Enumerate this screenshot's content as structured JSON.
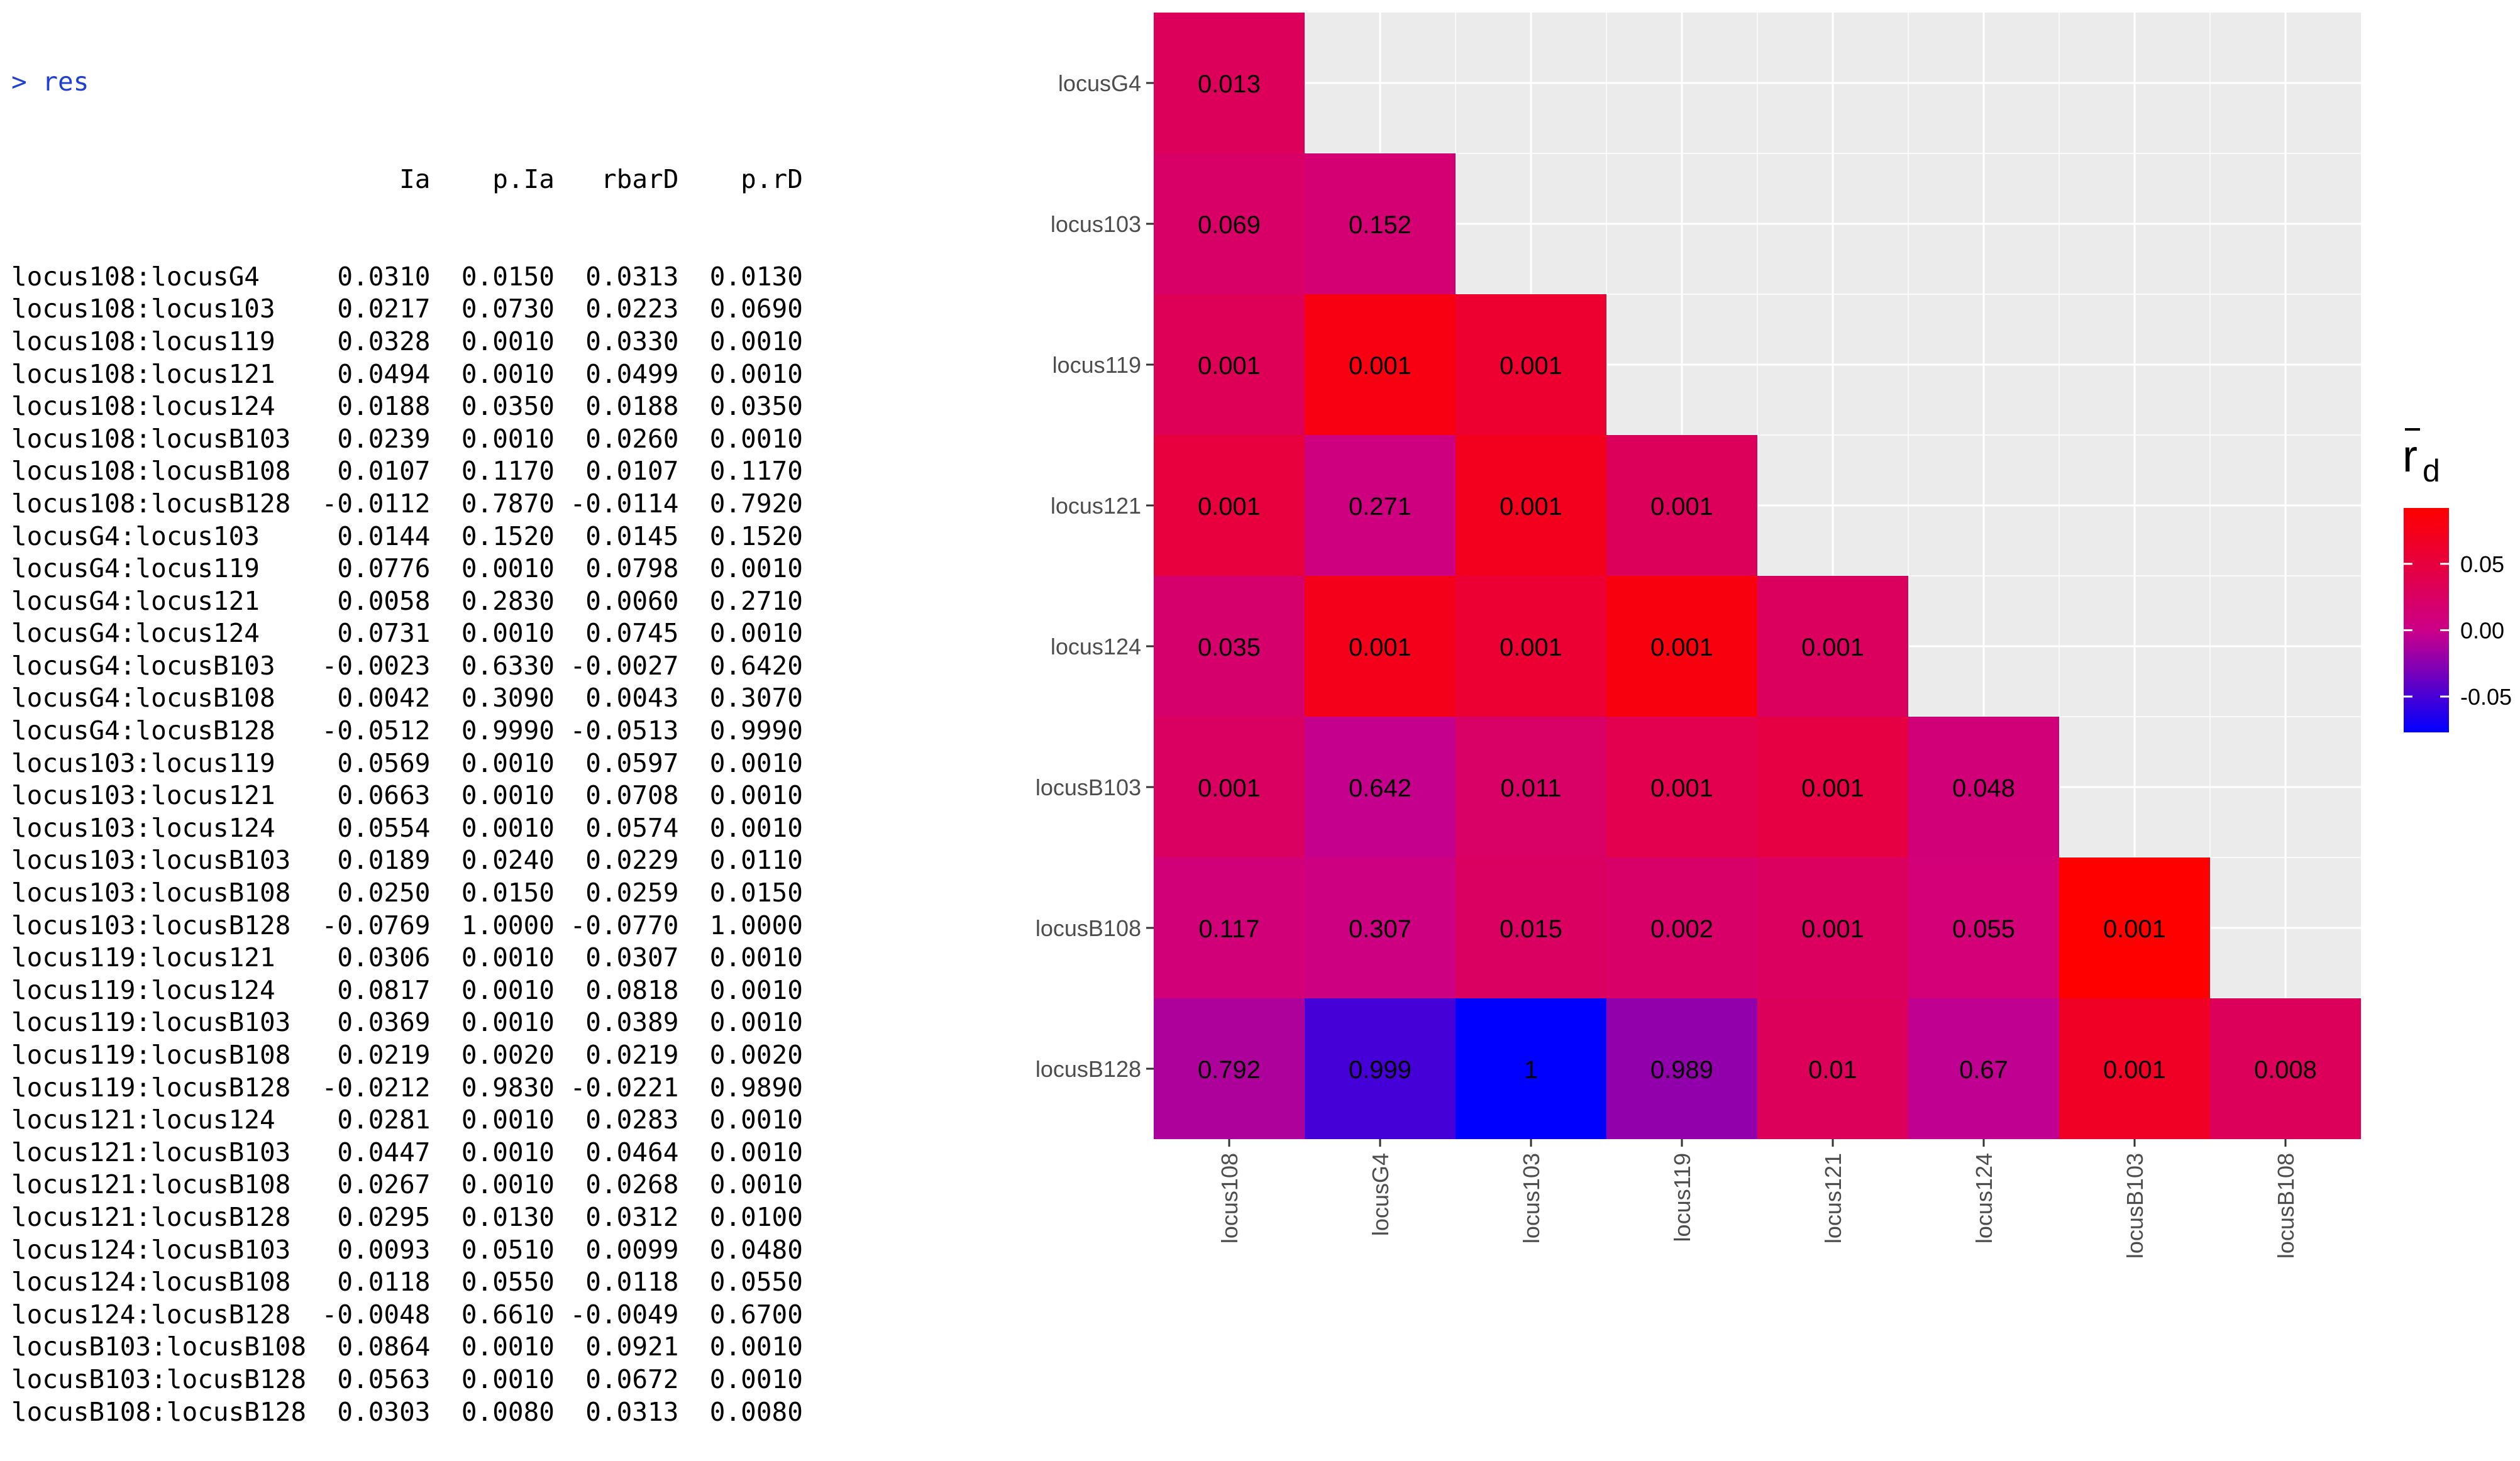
{
  "console": {
    "prompt": "> res",
    "headers": [
      "",
      "Ia",
      "p.Ia",
      "rbarD",
      "p.rD"
    ],
    "rows": [
      [
        "locus108:locusG4",
        "0.0310",
        "0.0150",
        "0.0313",
        "0.0130"
      ],
      [
        "locus108:locus103",
        "0.0217",
        "0.0730",
        "0.0223",
        "0.0690"
      ],
      [
        "locus108:locus119",
        "0.0328",
        "0.0010",
        "0.0330",
        "0.0010"
      ],
      [
        "locus108:locus121",
        "0.0494",
        "0.0010",
        "0.0499",
        "0.0010"
      ],
      [
        "locus108:locus124",
        "0.0188",
        "0.0350",
        "0.0188",
        "0.0350"
      ],
      [
        "locus108:locusB103",
        "0.0239",
        "0.0010",
        "0.0260",
        "0.0010"
      ],
      [
        "locus108:locusB108",
        "0.0107",
        "0.1170",
        "0.0107",
        "0.1170"
      ],
      [
        "locus108:locusB128",
        "-0.0112",
        "0.7870",
        "-0.0114",
        "0.7920"
      ],
      [
        "locusG4:locus103",
        "0.0144",
        "0.1520",
        "0.0145",
        "0.1520"
      ],
      [
        "locusG4:locus119",
        "0.0776",
        "0.0010",
        "0.0798",
        "0.0010"
      ],
      [
        "locusG4:locus121",
        "0.0058",
        "0.2830",
        "0.0060",
        "0.2710"
      ],
      [
        "locusG4:locus124",
        "0.0731",
        "0.0010",
        "0.0745",
        "0.0010"
      ],
      [
        "locusG4:locusB103",
        "-0.0023",
        "0.6330",
        "-0.0027",
        "0.6420"
      ],
      [
        "locusG4:locusB108",
        "0.0042",
        "0.3090",
        "0.0043",
        "0.3070"
      ],
      [
        "locusG4:locusB128",
        "-0.0512",
        "0.9990",
        "-0.0513",
        "0.9990"
      ],
      [
        "locus103:locus119",
        "0.0569",
        "0.0010",
        "0.0597",
        "0.0010"
      ],
      [
        "locus103:locus121",
        "0.0663",
        "0.0010",
        "0.0708",
        "0.0010"
      ],
      [
        "locus103:locus124",
        "0.0554",
        "0.0010",
        "0.0574",
        "0.0010"
      ],
      [
        "locus103:locusB103",
        "0.0189",
        "0.0240",
        "0.0229",
        "0.0110"
      ],
      [
        "locus103:locusB108",
        "0.0250",
        "0.0150",
        "0.0259",
        "0.0150"
      ],
      [
        "locus103:locusB128",
        "-0.0769",
        "1.0000",
        "-0.0770",
        "1.0000"
      ],
      [
        "locus119:locus121",
        "0.0306",
        "0.0010",
        "0.0307",
        "0.0010"
      ],
      [
        "locus119:locus124",
        "0.0817",
        "0.0010",
        "0.0818",
        "0.0010"
      ],
      [
        "locus119:locusB103",
        "0.0369",
        "0.0010",
        "0.0389",
        "0.0010"
      ],
      [
        "locus119:locusB108",
        "0.0219",
        "0.0020",
        "0.0219",
        "0.0020"
      ],
      [
        "locus119:locusB128",
        "-0.0212",
        "0.9830",
        "-0.0221",
        "0.9890"
      ],
      [
        "locus121:locus124",
        "0.0281",
        "0.0010",
        "0.0283",
        "0.0010"
      ],
      [
        "locus121:locusB103",
        "0.0447",
        "0.0010",
        "0.0464",
        "0.0010"
      ],
      [
        "locus121:locusB108",
        "0.0267",
        "0.0010",
        "0.0268",
        "0.0010"
      ],
      [
        "locus121:locusB128",
        "0.0295",
        "0.0130",
        "0.0312",
        "0.0100"
      ],
      [
        "locus124:locusB103",
        "0.0093",
        "0.0510",
        "0.0099",
        "0.0480"
      ],
      [
        "locus124:locusB108",
        "0.0118",
        "0.0550",
        "0.0118",
        "0.0550"
      ],
      [
        "locus124:locusB128",
        "-0.0048",
        "0.6610",
        "-0.0049",
        "0.6700"
      ],
      [
        "locusB103:locusB108",
        "0.0864",
        "0.0010",
        "0.0921",
        "0.0010"
      ],
      [
        "locusB103:locusB128",
        "0.0563",
        "0.0010",
        "0.0672",
        "0.0010"
      ],
      [
        "locusB108:locusB128",
        "0.0303",
        "0.0080",
        "0.0313",
        "0.0080"
      ]
    ]
  },
  "chart_data": {
    "type": "heatmap",
    "x_categories": [
      "locus108",
      "locusG4",
      "locus103",
      "locus119",
      "locus121",
      "locus124",
      "locusB103",
      "locusB108"
    ],
    "y_categories": [
      "locusG4",
      "locus103",
      "locus119",
      "locus121",
      "locus124",
      "locusB103",
      "locusB108",
      "locusB128"
    ],
    "cells": [
      {
        "x": "locus108",
        "y": "locusG4",
        "fill": 0.0313,
        "label": "0.013"
      },
      {
        "x": "locus108",
        "y": "locus103",
        "fill": 0.0223,
        "label": "0.069"
      },
      {
        "x": "locusG4",
        "y": "locus103",
        "fill": 0.0145,
        "label": "0.152"
      },
      {
        "x": "locus108",
        "y": "locus119",
        "fill": 0.033,
        "label": "0.001"
      },
      {
        "x": "locusG4",
        "y": "locus119",
        "fill": 0.0798,
        "label": "0.001"
      },
      {
        "x": "locus103",
        "y": "locus119",
        "fill": 0.0597,
        "label": "0.001"
      },
      {
        "x": "locus108",
        "y": "locus121",
        "fill": 0.0499,
        "label": "0.001"
      },
      {
        "x": "locusG4",
        "y": "locus121",
        "fill": 0.006,
        "label": "0.271"
      },
      {
        "x": "locus103",
        "y": "locus121",
        "fill": 0.0708,
        "label": "0.001"
      },
      {
        "x": "locus119",
        "y": "locus121",
        "fill": 0.0307,
        "label": "0.001"
      },
      {
        "x": "locus108",
        "y": "locus124",
        "fill": 0.0188,
        "label": "0.035"
      },
      {
        "x": "locusG4",
        "y": "locus124",
        "fill": 0.0745,
        "label": "0.001"
      },
      {
        "x": "locus103",
        "y": "locus124",
        "fill": 0.0574,
        "label": "0.001"
      },
      {
        "x": "locus119",
        "y": "locus124",
        "fill": 0.0818,
        "label": "0.001"
      },
      {
        "x": "locus121",
        "y": "locus124",
        "fill": 0.0283,
        "label": "0.001"
      },
      {
        "x": "locus108",
        "y": "locusB103",
        "fill": 0.026,
        "label": "0.001"
      },
      {
        "x": "locusG4",
        "y": "locusB103",
        "fill": -0.0027,
        "label": "0.642"
      },
      {
        "x": "locus103",
        "y": "locusB103",
        "fill": 0.0229,
        "label": "0.011"
      },
      {
        "x": "locus119",
        "y": "locusB103",
        "fill": 0.0389,
        "label": "0.001"
      },
      {
        "x": "locus121",
        "y": "locusB103",
        "fill": 0.0464,
        "label": "0.001"
      },
      {
        "x": "locus124",
        "y": "locusB103",
        "fill": 0.0099,
        "label": "0.048"
      },
      {
        "x": "locus108",
        "y": "locusB108",
        "fill": 0.0107,
        "label": "0.117"
      },
      {
        "x": "locusG4",
        "y": "locusB108",
        "fill": 0.0043,
        "label": "0.307"
      },
      {
        "x": "locus103",
        "y": "locusB108",
        "fill": 0.0259,
        "label": "0.015"
      },
      {
        "x": "locus119",
        "y": "locusB108",
        "fill": 0.0219,
        "label": "0.002"
      },
      {
        "x": "locus121",
        "y": "locusB108",
        "fill": 0.0268,
        "label": "0.001"
      },
      {
        "x": "locus124",
        "y": "locusB108",
        "fill": 0.0118,
        "label": "0.055"
      },
      {
        "x": "locusB103",
        "y": "locusB108",
        "fill": 0.0921,
        "label": "0.001"
      },
      {
        "x": "locus108",
        "y": "locusB128",
        "fill": -0.0114,
        "label": "0.792"
      },
      {
        "x": "locusG4",
        "y": "locusB128",
        "fill": -0.0513,
        "label": "0.999"
      },
      {
        "x": "locus103",
        "y": "locusB128",
        "fill": -0.077,
        "label": "1"
      },
      {
        "x": "locus119",
        "y": "locusB128",
        "fill": -0.0221,
        "label": "0.989"
      },
      {
        "x": "locus121",
        "y": "locusB128",
        "fill": 0.0312,
        "label": "0.01"
      },
      {
        "x": "locus124",
        "y": "locusB128",
        "fill": -0.0049,
        "label": "0.67"
      },
      {
        "x": "locusB103",
        "y": "locusB128",
        "fill": 0.0672,
        "label": "0.001"
      },
      {
        "x": "locusB108",
        "y": "locusB128",
        "fill": 0.0313,
        "label": "0.008"
      }
    ],
    "fill_range": [
      -0.077,
      0.0921
    ],
    "legend": {
      "title": "r",
      "title_subscript": "d",
      "ticks": [
        0.05,
        0.0,
        -0.05
      ],
      "tick_labels": [
        "0.05",
        "0.00",
        "-0.05"
      ],
      "placement": "right"
    },
    "colors": {
      "low": "#0000ff",
      "mid": "#cc0088",
      "high": "#ff0000",
      "panel": "#ebebeb",
      "grid": "#ffffff"
    },
    "grid": true
  }
}
